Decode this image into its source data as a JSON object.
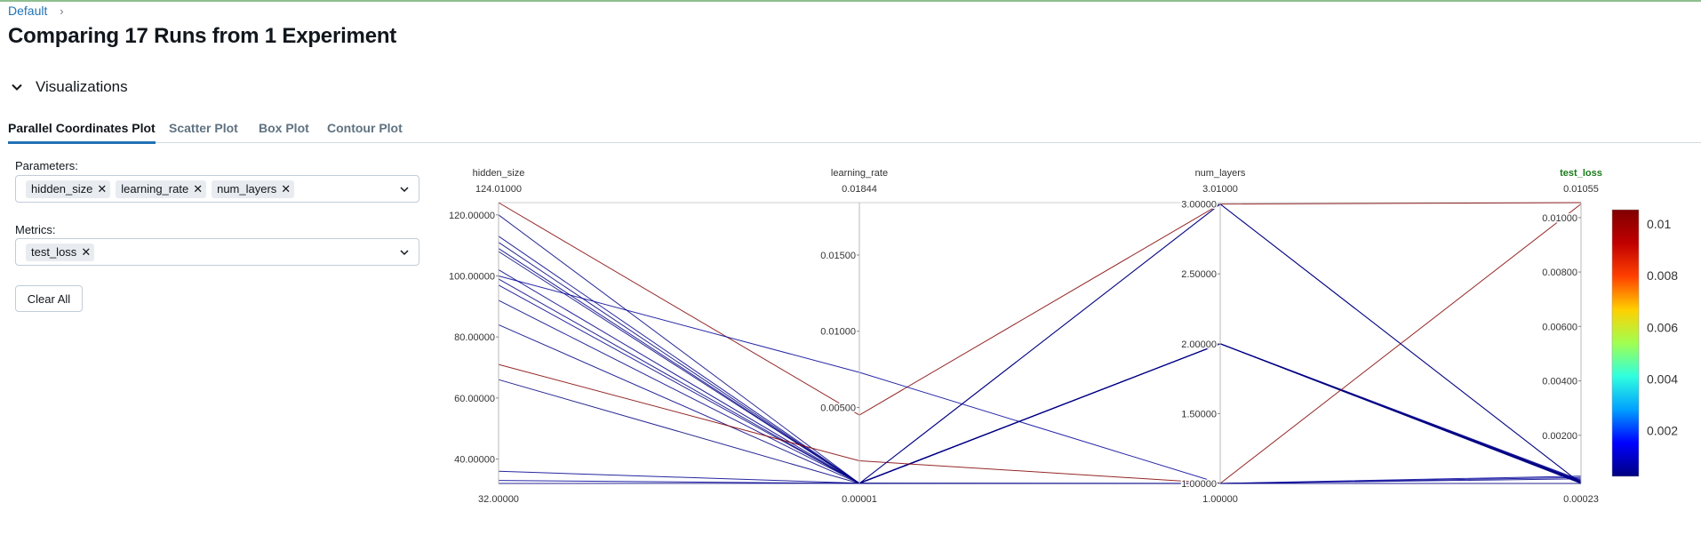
{
  "breadcrumb": {
    "root": "Default",
    "separator": "›"
  },
  "page_title": "Comparing 17 Runs from 1 Experiment",
  "section": {
    "label": "Visualizations"
  },
  "tabs": [
    {
      "label": "Parallel Coordinates Plot",
      "active": true
    },
    {
      "label": "Scatter Plot",
      "active": false
    },
    {
      "label": "Box Plot",
      "active": false
    },
    {
      "label": "Contour Plot",
      "active": false
    }
  ],
  "controls": {
    "parameters_label": "Parameters:",
    "parameters": [
      "hidden_size",
      "learning_rate",
      "num_layers"
    ],
    "metrics_label": "Metrics:",
    "metrics": [
      "test_loss"
    ],
    "clear_all_label": "Clear All"
  },
  "colors": {
    "accent": "#2272b4",
    "metric_header": "#1a7a1a",
    "axis": "#b0b0b0"
  },
  "chart_data": {
    "type": "parallel_coordinates",
    "axes": [
      {
        "name": "hidden_size",
        "range": [
          32,
          124.01
        ],
        "top_label": "124.01000",
        "bottom_label": "32.00000",
        "ticks": [
          40,
          60,
          80,
          100,
          120
        ],
        "tick_labels": [
          "40.00000",
          "60.00000",
          "80.00000",
          "100.00000",
          "120.00000"
        ]
      },
      {
        "name": "learning_rate",
        "range": [
          1e-05,
          0.01844
        ],
        "top_label": "0.01844",
        "bottom_label": "0.00001",
        "ticks": [
          0.005,
          0.01,
          0.015
        ],
        "tick_labels": [
          "0.00500",
          "0.01000",
          "0.01500"
        ]
      },
      {
        "name": "num_layers",
        "range": [
          1,
          3.01
        ],
        "top_label": "3.01000",
        "bottom_label": "1.00000",
        "ticks": [
          1,
          1.5,
          2,
          2.5,
          3
        ],
        "tick_labels": [
          "1.00000",
          "1.50000",
          "2.00000",
          "2.50000",
          "3.00000"
        ]
      },
      {
        "name": "test_loss",
        "range": [
          0.00023,
          0.01055
        ],
        "top_label": "0.01055",
        "bottom_label": "0.00023",
        "is_metric": true,
        "ticks": [
          0.002,
          0.004,
          0.006,
          0.008,
          0.01
        ],
        "tick_labels": [
          "0.00200",
          "0.00400",
          "0.00600",
          "0.00800",
          "0.01000"
        ]
      }
    ],
    "colorscale": {
      "metric": "test_loss",
      "ticks": [
        0.002,
        0.004,
        0.006,
        0.008,
        0.01
      ],
      "tick_labels": [
        "0.002",
        "0.004",
        "0.006",
        "0.008",
        "0.01"
      ],
      "stops": [
        "#000080",
        "#0000ff",
        "#00a0ff",
        "#2fffdf",
        "#a0ff50",
        "#ffd000",
        "#ff4000",
        "#c00000",
        "#800000"
      ]
    },
    "runs": [
      [
        124,
        0.0045,
        3,
        0.01055
      ],
      [
        120,
        1e-05,
        3,
        0.00023
      ],
      [
        113,
        3e-05,
        2,
        0.00035
      ],
      [
        111,
        1e-05,
        2,
        0.00023
      ],
      [
        109,
        2e-05,
        2,
        0.00028
      ],
      [
        108,
        1e-05,
        2,
        0.00025
      ],
      [
        102,
        2e-05,
        2,
        0.0003
      ],
      [
        100,
        0.0073,
        1,
        0.00045
      ],
      [
        99,
        1e-05,
        2,
        0.00025
      ],
      [
        97,
        3e-05,
        2,
        0.00032
      ],
      [
        92,
        4e-05,
        2,
        0.0003
      ],
      [
        84,
        2e-05,
        2,
        0.00028
      ],
      [
        71,
        0.0015,
        1,
        0.0105
      ],
      [
        66,
        1e-05,
        3,
        0.00023
      ],
      [
        36,
        3e-05,
        1,
        0.0004
      ],
      [
        33,
        1e-05,
        1,
        0.0005
      ],
      [
        32,
        2e-05,
        1,
        0.00023
      ]
    ]
  }
}
